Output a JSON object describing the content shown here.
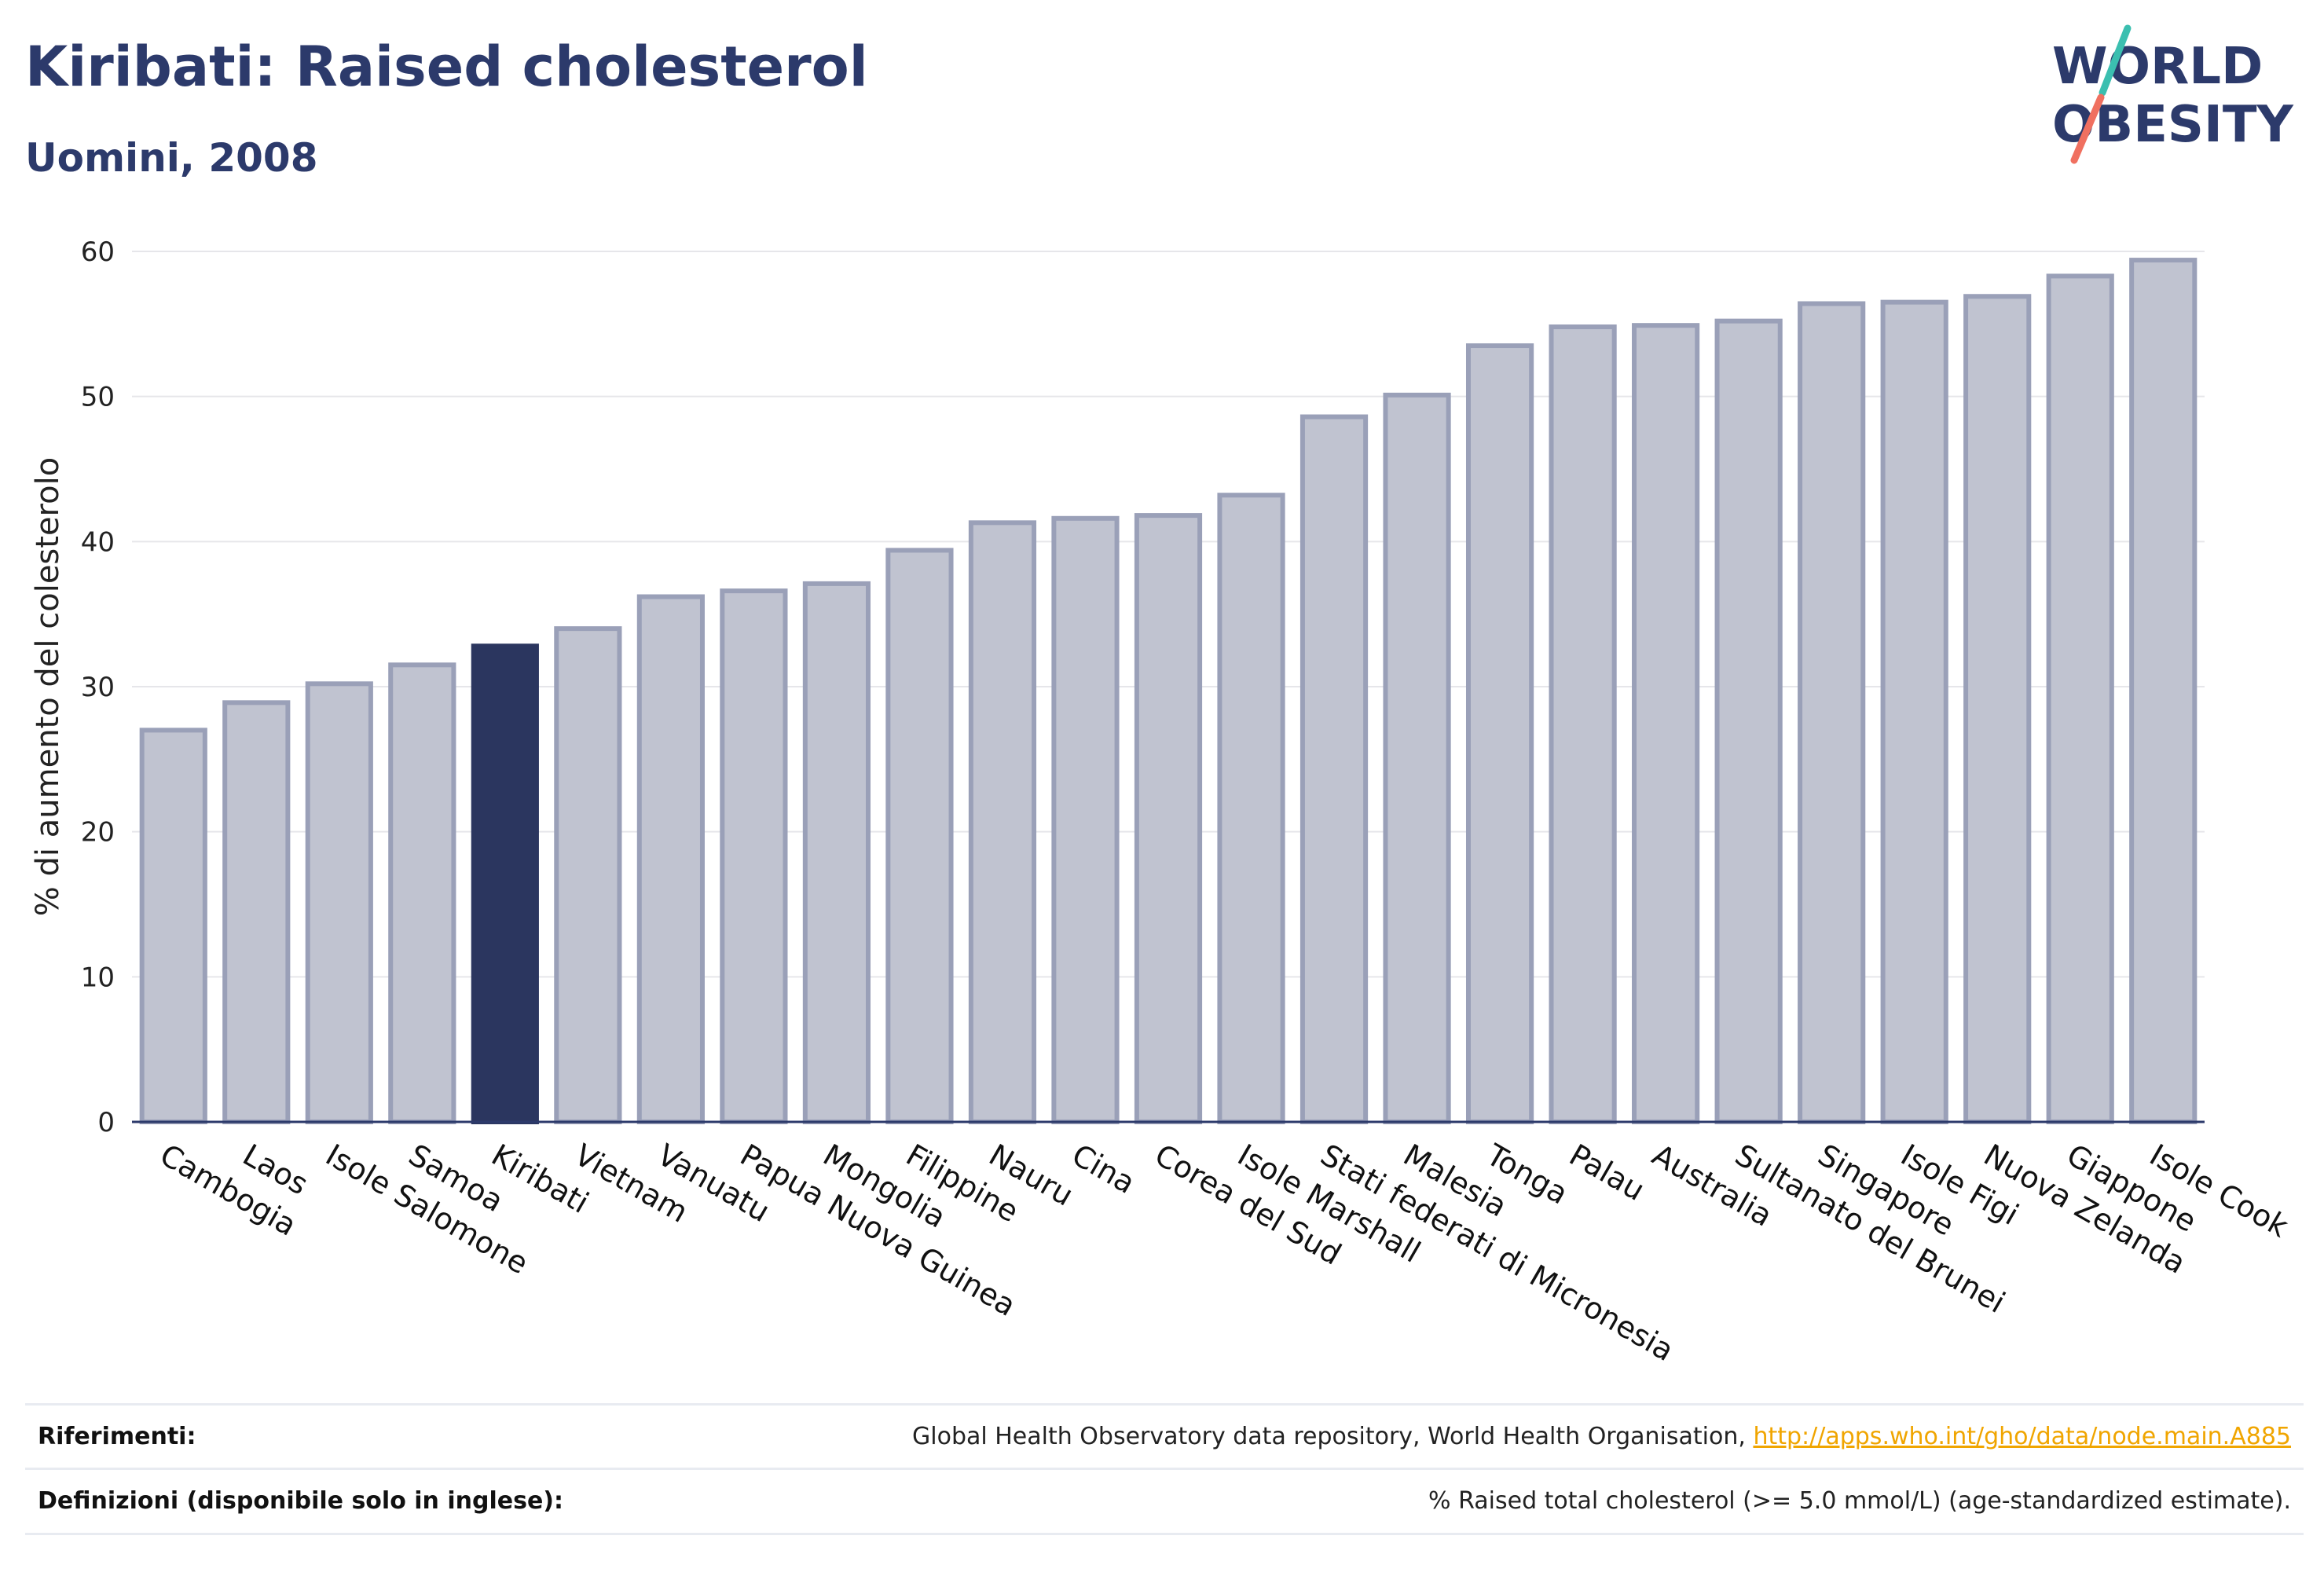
{
  "header": {
    "title": "Kiribati: Raised cholesterol",
    "subtitle": "Uomini, 2008"
  },
  "logo": {
    "line1": "WORLD",
    "line2": "OBESITY",
    "colors": {
      "text": "#2c3a6b",
      "slash_top": "#3bbfb0",
      "slash_bottom": "#f07060"
    }
  },
  "colors": {
    "bar_default": "#c0c3d0",
    "bar_outline": "#9aa0b8",
    "bar_highlight": "#2b365f",
    "grid": "#e6e6ea",
    "axis": "#2c3a6b"
  },
  "chart_data": {
    "type": "bar",
    "ylabel": "% di aumento del colesterolo",
    "ylim": [
      0,
      60
    ],
    "yticks": [
      0,
      10,
      20,
      30,
      40,
      50,
      60
    ],
    "highlight": "Kiribati",
    "categories": [
      "Cambogia",
      "Laos",
      "Isole Salomone",
      "Samoa",
      "Kiribati",
      "Vietnam",
      "Vanuatu",
      "Papua Nuova Guinea",
      "Mongolia",
      "Filippine",
      "Nauru",
      "Cina",
      "Corea del Sud",
      "Isole Marshall",
      "Stati federati di Micronesia",
      "Malesia",
      "Tonga",
      "Palau",
      "Australia",
      "Sultanato del Brunei",
      "Singapore",
      "Isole Figi",
      "Nuova Zelanda",
      "Giappone",
      "Isole Cook"
    ],
    "values": [
      27.0,
      28.9,
      30.2,
      31.5,
      32.8,
      34.0,
      36.2,
      36.6,
      37.1,
      39.4,
      41.3,
      41.6,
      41.8,
      43.2,
      48.6,
      50.1,
      53.5,
      54.8,
      54.9,
      55.2,
      56.4,
      56.5,
      56.9,
      58.3,
      59.4
    ]
  },
  "footer": {
    "references_label": "Riferimenti:",
    "references_text": "Global Health Observatory data repository, World Health Organisation, ",
    "references_link": "http://apps.who.int/gho/data/node.main.A885",
    "definitions_label": "Definizioni (disponibile solo in inglese):",
    "definitions_text": "% Raised total cholesterol (>= 5.0 mmol/L) (age-standardized estimate)."
  }
}
